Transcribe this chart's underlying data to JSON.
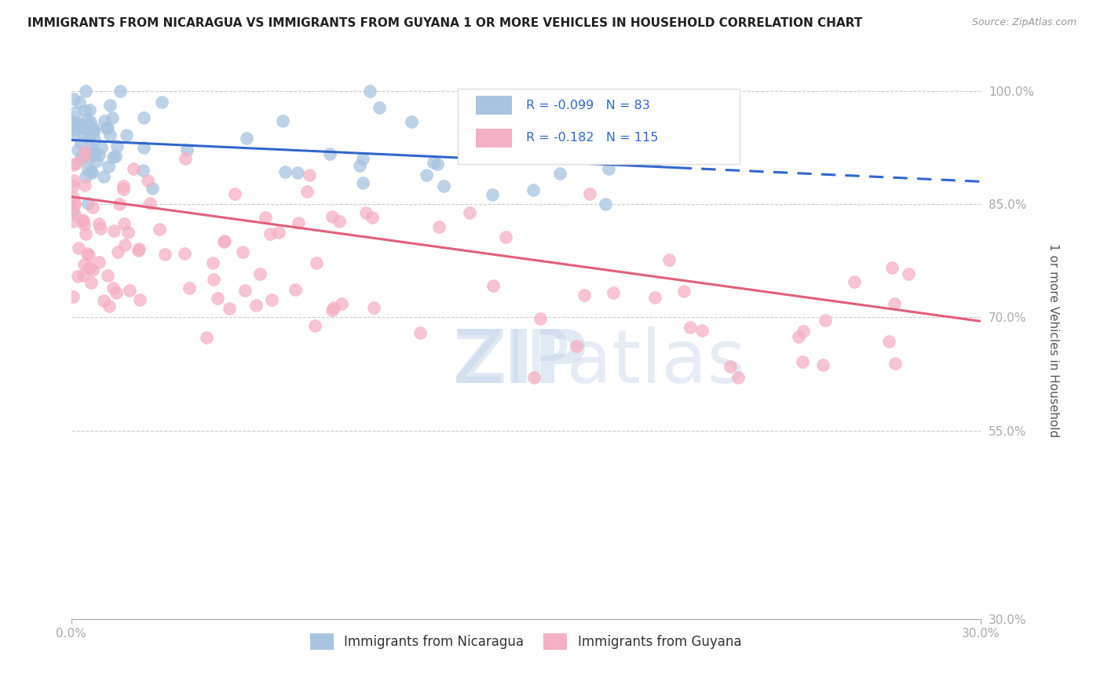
{
  "title": "IMMIGRANTS FROM NICARAGUA VS IMMIGRANTS FROM GUYANA 1 OR MORE VEHICLES IN HOUSEHOLD CORRELATION CHART",
  "source": "Source: ZipAtlas.com",
  "ylabel": "1 or more Vehicles in Household",
  "xlim": [
    0.0,
    30.0
  ],
  "ylim": [
    30.0,
    104.0
  ],
  "x_tick_vals": [
    0.0,
    30.0
  ],
  "x_tick_labels": [
    "0.0%",
    "30.0%"
  ],
  "y_tick_vals": [
    30.0,
    55.0,
    70.0,
    85.0,
    100.0
  ],
  "y_tick_labels": [
    "30.0%",
    "55.0%",
    "70.0%",
    "85.0%",
    "100.0%"
  ],
  "blue_R": -0.099,
  "blue_N": 83,
  "pink_R": -0.182,
  "pink_N": 115,
  "blue_color": "#a8c4e0",
  "pink_color": "#f4b0c4",
  "blue_line_color": "#3366cc",
  "pink_line_color": "#e0607a",
  "legend_label_blue": "Immigrants from Nicaragua",
  "legend_label_pink": "Immigrants from Guyana",
  "blue_trend_x0": 0,
  "blue_trend_x1": 30,
  "blue_trend_y0": 93.5,
  "blue_trend_y1": 88.0,
  "pink_trend_x0": 0,
  "pink_trend_x1": 30,
  "pink_trend_y0": 86.0,
  "pink_trend_y1": 69.5,
  "blue_dashed_start_x": 20,
  "watermark_zip_color": "#b0c8e8",
  "watermark_atlas_color": "#90b8d8",
  "title_fontsize": 11,
  "tick_fontsize": 11,
  "ylabel_fontsize": 11
}
